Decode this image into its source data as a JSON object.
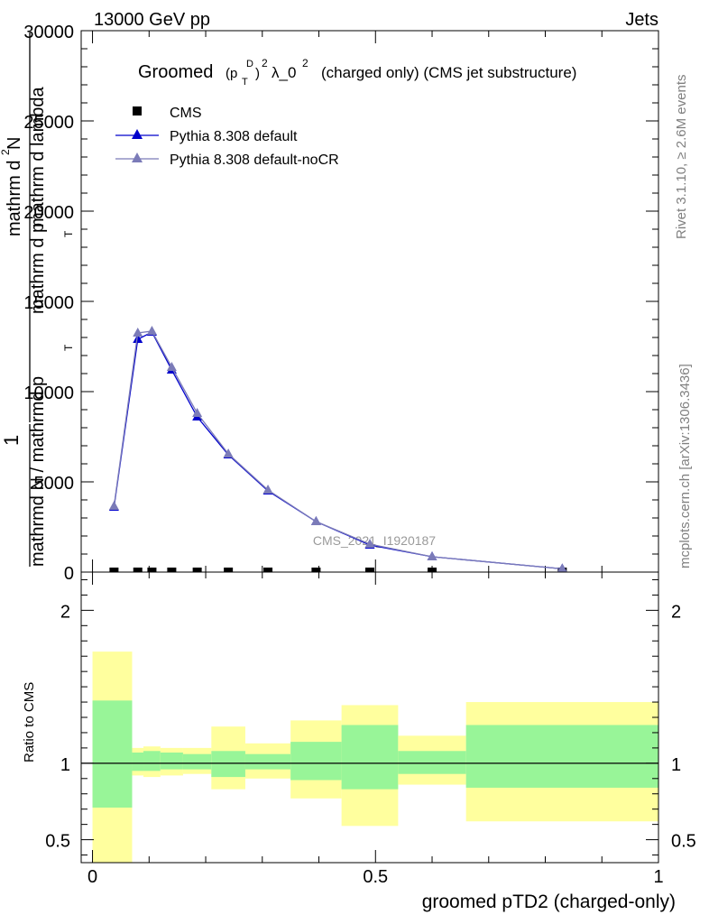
{
  "header": {
    "energy_label": "13000 GeV pp",
    "category_label": "Jets"
  },
  "side_labels": {
    "rivet": "Rivet 3.1.10, ≥ 2.6M events",
    "mcplots": "mcplots.cern.ch [arXiv:1306.3436]"
  },
  "plot_title": {
    "main": "Groomed",
    "sym_p": "(p",
    "sym_sup_D": "D",
    "sym_sub_T": "T",
    "sym_close": ")",
    "sym_sup_2": "2",
    "lambda_text": "λ_0",
    "lambda_sup": "2",
    "rest": "(charged only) (CMS jet substructure)"
  },
  "watermark": "CMS_2021_I1920187",
  "y_axis_label": {
    "frac_one": "1",
    "frac_den": "mathrmd N / mathrmd p",
    "frac_den_sub": "T",
    "deriv_num": "mathrm d",
    "deriv_num_sup": "2",
    "deriv_num_N": "N",
    "deriv_den": "mathrm d p",
    "deriv_den_sub": "T",
    "deriv_den_rest": " mathrm d lambda"
  },
  "ratio_axis_label": "Ratio to CMS",
  "x_axis_label": "groomed pTD2 (charged-only)",
  "legend": [
    {
      "label": "CMS",
      "color": "#000000",
      "marker": "square"
    },
    {
      "label": "Pythia 8.308 default",
      "color": "#0000cc",
      "marker": "triangle"
    },
    {
      "label": "Pythia 8.308 default-noCR",
      "color": "#7b7bb8",
      "marker": "triangle"
    }
  ],
  "chart_data": [
    {
      "type": "line",
      "panel": "main",
      "xlim": [
        -0.02,
        1.0
      ],
      "ylim": [
        0,
        30000
      ],
      "y_ticks": [
        0,
        5000,
        10000,
        15000,
        20000,
        25000,
        30000
      ],
      "y_tick_labels": [
        "0",
        "5000",
        "10000",
        "15000",
        "20000",
        "25000",
        "30000"
      ],
      "series": [
        {
          "name": "CMS",
          "x": [
            0.038,
            0.08,
            0.105,
            0.14,
            0.185,
            0.24,
            0.31,
            0.395,
            0.49,
            0.6,
            0.83
          ],
          "y": [
            0,
            0,
            0,
            0,
            0,
            0,
            0,
            0,
            0,
            0,
            0
          ]
        },
        {
          "name": "Pythia 8.308 default",
          "x": [
            0.038,
            0.08,
            0.105,
            0.14,
            0.185,
            0.24,
            0.31,
            0.395,
            0.49,
            0.6,
            0.83
          ],
          "y": [
            3600,
            12900,
            13300,
            11200,
            8600,
            6500,
            4500,
            2800,
            1500,
            850,
            180
          ]
        },
        {
          "name": "Pythia 8.308 default-noCR",
          "x": [
            0.038,
            0.08,
            0.105,
            0.14,
            0.185,
            0.24,
            0.31,
            0.395,
            0.49,
            0.6,
            0.83
          ],
          "y": [
            3650,
            13250,
            13350,
            11350,
            8800,
            6550,
            4550,
            2800,
            1550,
            850,
            180
          ]
        }
      ]
    },
    {
      "type": "area",
      "panel": "ratio",
      "xlim": [
        -0.02,
        1.0
      ],
      "ylim": [
        0.35,
        2.25
      ],
      "y_ticks": [
        0.5,
        1,
        2
      ],
      "y_tick_labels": [
        "0.5",
        "1",
        "2"
      ],
      "x_ticks": [
        0,
        0.5,
        1
      ],
      "x_tick_labels": [
        "0",
        "0.5",
        "1"
      ],
      "bins": [
        {
          "x0": 0.0,
          "x1": 0.07,
          "stat_lo": 0.71,
          "stat_hi": 1.41,
          "tot_lo": 0.3,
          "tot_hi": 1.73
        },
        {
          "x0": 0.07,
          "x1": 0.09,
          "stat_lo": 0.95,
          "stat_hi": 1.07,
          "tot_lo": 0.92,
          "tot_hi": 1.1
        },
        {
          "x0": 0.09,
          "x1": 0.12,
          "stat_lo": 0.95,
          "stat_hi": 1.08,
          "tot_lo": 0.91,
          "tot_hi": 1.11
        },
        {
          "x0": 0.12,
          "x1": 0.16,
          "stat_lo": 0.96,
          "stat_hi": 1.07,
          "tot_lo": 0.92,
          "tot_hi": 1.1
        },
        {
          "x0": 0.16,
          "x1": 0.21,
          "stat_lo": 0.96,
          "stat_hi": 1.06,
          "tot_lo": 0.93,
          "tot_hi": 1.1
        },
        {
          "x0": 0.21,
          "x1": 0.27,
          "stat_lo": 0.91,
          "stat_hi": 1.08,
          "tot_lo": 0.83,
          "tot_hi": 1.24
        },
        {
          "x0": 0.27,
          "x1": 0.35,
          "stat_lo": 0.96,
          "stat_hi": 1.06,
          "tot_lo": 0.9,
          "tot_hi": 1.13
        },
        {
          "x0": 0.35,
          "x1": 0.44,
          "stat_lo": 0.89,
          "stat_hi": 1.14,
          "tot_lo": 0.77,
          "tot_hi": 1.28
        },
        {
          "x0": 0.44,
          "x1": 0.54,
          "stat_lo": 0.83,
          "stat_hi": 1.25,
          "tot_lo": 0.59,
          "tot_hi": 1.38
        },
        {
          "x0": 0.54,
          "x1": 0.66,
          "stat_lo": 0.93,
          "stat_hi": 1.08,
          "tot_lo": 0.86,
          "tot_hi": 1.18
        },
        {
          "x0": 0.66,
          "x1": 1.0,
          "stat_lo": 0.84,
          "stat_hi": 1.25,
          "tot_lo": 0.62,
          "tot_hi": 1.4
        }
      ],
      "reference_line": 1
    }
  ],
  "colors": {
    "stat_band": "#98f598",
    "total_band": "#ffff9e",
    "default_line": "#0000cc",
    "nocr_line": "#7b7bb8",
    "side_text": "#808080",
    "watermark": "#9a9a9a"
  }
}
